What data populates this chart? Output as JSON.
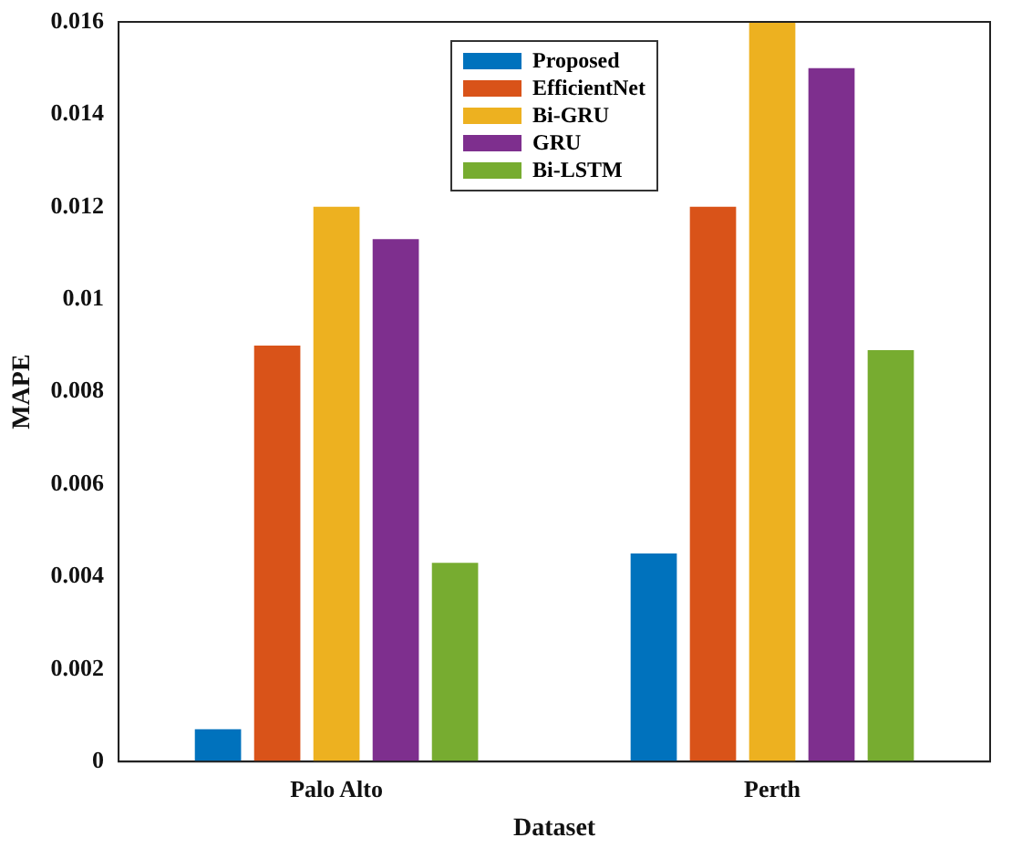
{
  "chart_data": {
    "type": "bar",
    "xlabel": "Dataset",
    "ylabel": "MAPE",
    "categories": [
      "Palo Alto",
      "Perth"
    ],
    "series": [
      {
        "name": "Proposed",
        "color": "#0072bd",
        "values": [
          0.0007,
          0.0045
        ]
      },
      {
        "name": "EfficientNet",
        "color": "#d95319",
        "values": [
          0.009,
          0.012
        ]
      },
      {
        "name": "Bi-GRU",
        "color": "#edb120",
        "values": [
          0.012,
          0.016
        ]
      },
      {
        "name": "GRU",
        "color": "#7e2f8e",
        "values": [
          0.0113,
          0.015
        ]
      },
      {
        "name": "Bi-LSTM",
        "color": "#77ac30",
        "values": [
          0.0043,
          0.0089
        ]
      }
    ],
    "ylim": [
      0,
      0.016
    ],
    "yticks": [
      0,
      0.002,
      0.004,
      0.006,
      0.008,
      0.01,
      0.012,
      0.014,
      0.016
    ],
    "grid": false,
    "legend": "top"
  }
}
